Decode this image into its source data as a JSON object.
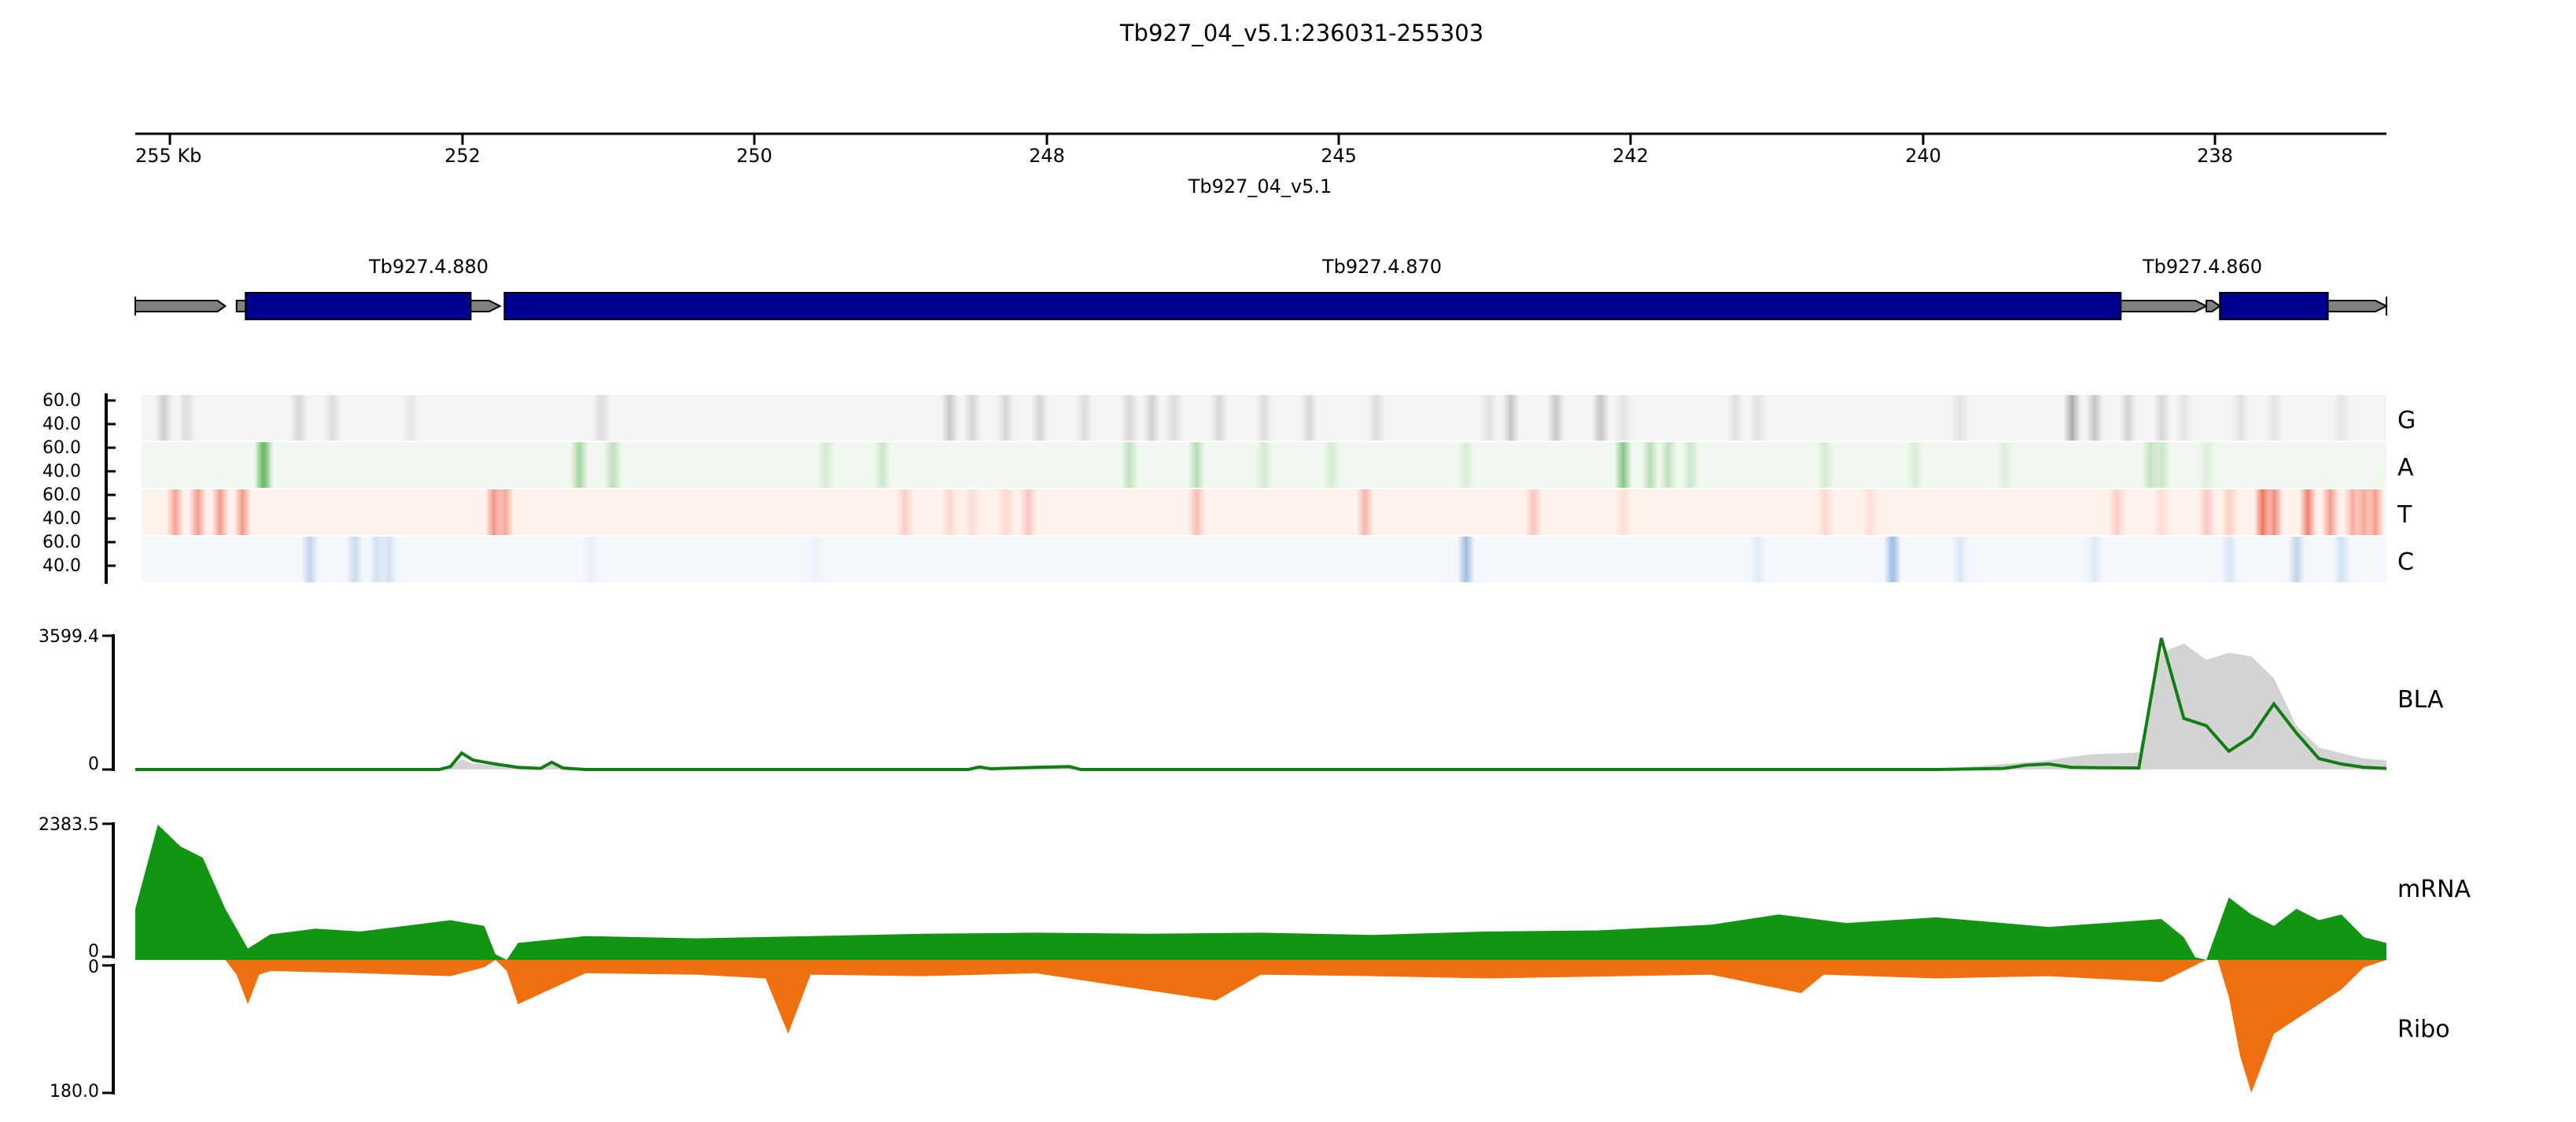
{
  "title": "Tb927_04_v5.1:236031-255303",
  "chart_data": {
    "type": "genome-track",
    "region": {
      "chrom": "Tb927_04_v5.1",
      "start": 236031,
      "end": 255303,
      "orientation": "reversed"
    },
    "coordinate_axis": {
      "ticks": [
        "255 Kb",
        "252",
        "250",
        "248",
        "245",
        "242",
        "240",
        "238"
      ],
      "chrom_label": "Tb927_04_v5.1"
    },
    "genes": [
      {
        "name": "Tb927.4.880",
        "utr5": [
          0.0,
          0.04
        ],
        "cds": [
          0.049,
          0.149
        ],
        "utr3": [
          0.149,
          0.162
        ]
      },
      {
        "name": "Tb927.4.870",
        "utr5": [],
        "cds": [
          0.164,
          0.882
        ],
        "utr3": [
          0.882,
          0.92
        ]
      },
      {
        "name": "Tb927.4.860",
        "utr5": [
          0.92,
          0.926
        ],
        "cds": [
          0.926,
          0.974
        ],
        "utr3": [
          0.974,
          1.0
        ]
      }
    ],
    "nucleotide_tracks": [
      {
        "name": "G",
        "color": "#555555",
        "y_ticks": [
          "60.0",
          "40.0"
        ],
        "peaks": [
          [
            0.01,
            0.25
          ],
          [
            0.02,
            0.15
          ],
          [
            0.07,
            0.18
          ],
          [
            0.085,
            0.15
          ],
          [
            0.12,
            0.08
          ],
          [
            0.205,
            0.15
          ],
          [
            0.36,
            0.28
          ],
          [
            0.37,
            0.2
          ],
          [
            0.385,
            0.18
          ],
          [
            0.4,
            0.2
          ],
          [
            0.42,
            0.15
          ],
          [
            0.44,
            0.18
          ],
          [
            0.45,
            0.22
          ],
          [
            0.46,
            0.15
          ],
          [
            0.48,
            0.18
          ],
          [
            0.5,
            0.15
          ],
          [
            0.52,
            0.18
          ],
          [
            0.55,
            0.15
          ],
          [
            0.61,
            0.3
          ],
          [
            0.63,
            0.28
          ],
          [
            0.6,
            0.12
          ],
          [
            0.66,
            0.1
          ],
          [
            0.71,
            0.12
          ],
          [
            0.65,
            0.3
          ],
          [
            0.72,
            0.12
          ],
          [
            0.81,
            0.12
          ],
          [
            0.86,
            0.45
          ],
          [
            0.87,
            0.3
          ],
          [
            0.885,
            0.22
          ],
          [
            0.9,
            0.18
          ],
          [
            0.91,
            0.1
          ],
          [
            0.935,
            0.12
          ],
          [
            0.95,
            0.1
          ],
          [
            0.98,
            0.1
          ]
        ]
      },
      {
        "name": "A",
        "color": "#2ca02c",
        "y_ticks": [
          "60.0",
          "40.0"
        ],
        "peaks": [
          [
            0.054,
            0.55
          ],
          [
            0.055,
            0.4
          ],
          [
            0.195,
            0.4
          ],
          [
            0.21,
            0.28
          ],
          [
            0.305,
            0.15
          ],
          [
            0.33,
            0.2
          ],
          [
            0.44,
            0.25
          ],
          [
            0.47,
            0.3
          ],
          [
            0.5,
            0.15
          ],
          [
            0.53,
            0.15
          ],
          [
            0.59,
            0.12
          ],
          [
            0.66,
            0.55
          ],
          [
            0.672,
            0.3
          ],
          [
            0.68,
            0.25
          ],
          [
            0.69,
            0.2
          ],
          [
            0.75,
            0.15
          ],
          [
            0.79,
            0.12
          ],
          [
            0.83,
            0.1
          ],
          [
            0.895,
            0.25
          ],
          [
            0.9,
            0.2
          ],
          [
            0.92,
            0.1
          ]
        ]
      },
      {
        "name": "T",
        "color": "#e8462a",
        "y_ticks": [
          "60.0",
          "40.0"
        ],
        "peaks": [
          [
            0.015,
            0.45
          ],
          [
            0.025,
            0.5
          ],
          [
            0.035,
            0.5
          ],
          [
            0.045,
            0.5
          ],
          [
            0.157,
            0.55
          ],
          [
            0.162,
            0.45
          ],
          [
            0.34,
            0.2
          ],
          [
            0.36,
            0.15
          ],
          [
            0.37,
            0.12
          ],
          [
            0.385,
            0.15
          ],
          [
            0.395,
            0.25
          ],
          [
            0.47,
            0.3
          ],
          [
            0.545,
            0.35
          ],
          [
            0.62,
            0.25
          ],
          [
            0.66,
            0.1
          ],
          [
            0.75,
            0.15
          ],
          [
            0.77,
            0.12
          ],
          [
            0.88,
            0.2
          ],
          [
            0.9,
            0.12
          ],
          [
            0.92,
            0.1
          ],
          [
            0.93,
            0.2
          ],
          [
            0.945,
            0.75
          ],
          [
            0.95,
            0.6
          ],
          [
            0.965,
            0.65
          ],
          [
            0.975,
            0.5
          ],
          [
            0.985,
            0.4
          ],
          [
            0.99,
            0.45
          ],
          [
            0.995,
            0.5
          ],
          [
            0.92,
            0.15
          ]
        ]
      },
      {
        "name": "C",
        "color": "#4a7fc0",
        "y_ticks": [
          "60.0",
          "40.0"
        ],
        "peaks": [
          [
            0.075,
            0.3
          ],
          [
            0.095,
            0.25
          ],
          [
            0.105,
            0.2
          ],
          [
            0.11,
            0.2
          ],
          [
            0.2,
            0.08
          ],
          [
            0.3,
            0.05
          ],
          [
            0.59,
            0.5
          ],
          [
            0.72,
            0.12
          ],
          [
            0.78,
            0.1
          ],
          [
            0.78,
            0.45
          ],
          [
            0.81,
            0.15
          ],
          [
            0.87,
            0.12
          ],
          [
            0.93,
            0.15
          ],
          [
            0.96,
            0.3
          ],
          [
            0.98,
            0.2
          ]
        ]
      }
    ],
    "bla_track": {
      "name": "BLA",
      "y_ticks": [
        "3599.4",
        "0"
      ],
      "ylim": [
        0,
        3599.4
      ],
      "x": [
        0.0,
        0.03,
        0.06,
        0.09,
        0.12,
        0.135,
        0.14,
        0.145,
        0.15,
        0.16,
        0.17,
        0.18,
        0.185,
        0.19,
        0.2,
        0.3,
        0.37,
        0.375,
        0.38,
        0.4,
        0.415,
        0.42,
        0.5,
        0.6,
        0.7,
        0.8,
        0.83,
        0.84,
        0.85,
        0.86,
        0.87,
        0.88,
        0.89,
        0.9,
        0.91,
        0.92,
        0.93,
        0.94,
        0.95,
        0.96,
        0.97,
        0.98,
        0.99,
        1.0
      ],
      "coverage": [
        0,
        0,
        0,
        0,
        0,
        0,
        100,
        280,
        160,
        120,
        80,
        60,
        180,
        100,
        0,
        0,
        0,
        50,
        30,
        50,
        80,
        0,
        0,
        0,
        0,
        0,
        150,
        200,
        250,
        350,
        420,
        440,
        470,
        3200,
        3450,
        3000,
        3200,
        3100,
        2500,
        1200,
        600,
        450,
        300,
        250
      ],
      "signal": [
        0,
        0,
        0,
        0,
        0,
        0,
        80,
        450,
        260,
        150,
        60,
        30,
        200,
        40,
        0,
        0,
        0,
        70,
        20,
        60,
        80,
        0,
        0,
        0,
        0,
        0,
        30,
        120,
        150,
        60,
        50,
        45,
        40,
        3599.4,
        1400,
        1200,
        500,
        900,
        1800,
        1000,
        300,
        150,
        60,
        30
      ]
    },
    "mrna_track": {
      "name": "mRNA",
      "y_ticks": [
        "2383.5",
        "0"
      ],
      "ylim": [
        0,
        2383.5
      ],
      "x": [
        0.0,
        0.01,
        0.02,
        0.03,
        0.04,
        0.05,
        0.06,
        0.08,
        0.1,
        0.12,
        0.14,
        0.155,
        0.16,
        0.165,
        0.17,
        0.2,
        0.25,
        0.3,
        0.35,
        0.4,
        0.45,
        0.5,
        0.55,
        0.6,
        0.65,
        0.7,
        0.73,
        0.76,
        0.8,
        0.85,
        0.9,
        0.91,
        0.915,
        0.92,
        0.93,
        0.94,
        0.95,
        0.96,
        0.97,
        0.98,
        0.99,
        1.0
      ],
      "values": [
        900,
        2383.5,
        2000,
        1800,
        900,
        200,
        450,
        550,
        500,
        600,
        700,
        600,
        100,
        0,
        300,
        420,
        380,
        420,
        460,
        480,
        460,
        480,
        440,
        500,
        520,
        620,
        800,
        650,
        750,
        580,
        720,
        400,
        50,
        0,
        1100,
        800,
        600,
        900,
        700,
        800,
        400,
        300
      ]
    },
    "ribo_track": {
      "name": "Ribo",
      "y_ticks": [
        "0",
        "180.0"
      ],
      "ylim": [
        0,
        180.0
      ],
      "inverted": true,
      "x": [
        0.0,
        0.04,
        0.045,
        0.05,
        0.055,
        0.06,
        0.1,
        0.14,
        0.155,
        0.16,
        0.165,
        0.17,
        0.2,
        0.25,
        0.28,
        0.29,
        0.3,
        0.35,
        0.4,
        0.48,
        0.5,
        0.55,
        0.6,
        0.7,
        0.74,
        0.75,
        0.8,
        0.85,
        0.9,
        0.92,
        0.925,
        0.93,
        0.935,
        0.94,
        0.95,
        0.96,
        0.97,
        0.98,
        0.99,
        1.0
      ],
      "values": [
        0,
        0,
        20,
        60,
        20,
        15,
        18,
        22,
        10,
        0,
        15,
        60,
        18,
        20,
        25,
        100,
        20,
        22,
        18,
        55,
        20,
        22,
        25,
        20,
        45,
        20,
        25,
        22,
        30,
        0,
        0,
        50,
        130,
        180,
        100,
        80,
        60,
        40,
        10,
        0
      ]
    },
    "colors": {
      "cds": "#000090",
      "utr": "#808080",
      "bla_coverage": "#d3d3d3",
      "bla_signal": "#127d12",
      "mrna": "#129512",
      "ribo": "#ee7011"
    }
  }
}
